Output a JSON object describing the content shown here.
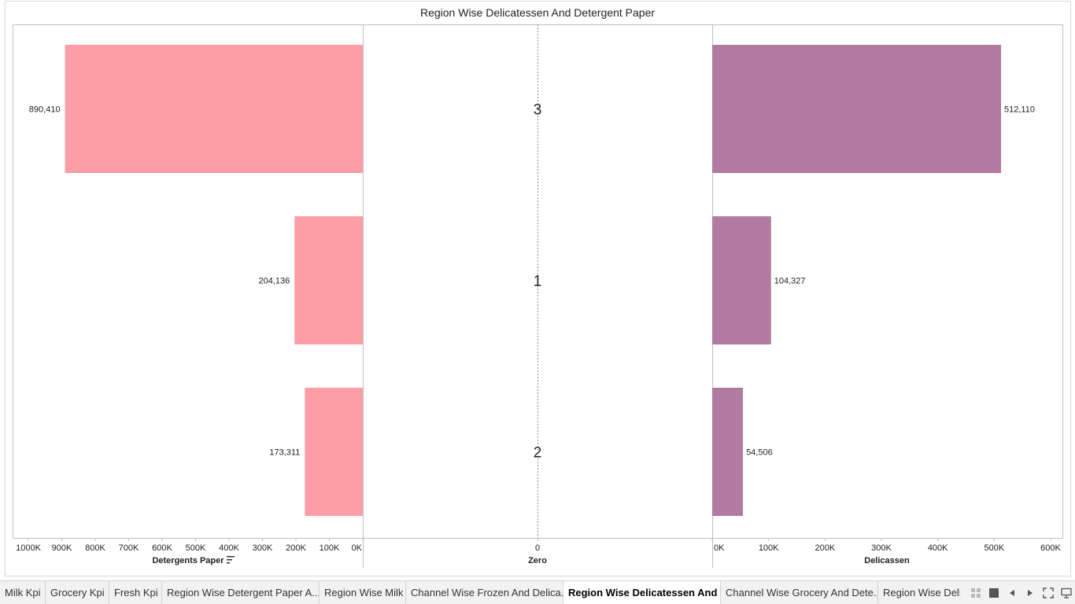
{
  "title": "Region Wise Delicatessen And Detergent Paper",
  "colors": {
    "detergents": "#ff9da7",
    "delicassen": "#b07aa1",
    "axis": "#c0c0c0",
    "text": "#222222"
  },
  "chart_data": {
    "type": "bar",
    "title": "Region Wise Delicatessen And Detergent Paper",
    "categories": [
      "3",
      "1",
      "2"
    ],
    "series": [
      {
        "name": "Detergents Paper",
        "values": [
          890410,
          204136,
          173311
        ],
        "labels": [
          "890,410",
          "204,136",
          "173,311"
        ],
        "direction": "left"
      },
      {
        "name": "Delicassen",
        "values": [
          512110,
          104327,
          54506
        ],
        "labels": [
          "512,110",
          "104,327",
          "54,506"
        ],
        "direction": "right"
      }
    ],
    "left_axis": {
      "label": "Detergents Paper",
      "range": [
        0,
        1000000
      ],
      "ticks": [
        "1000K",
        "900K",
        "800K",
        "700K",
        "600K",
        "500K",
        "400K",
        "300K",
        "200K",
        "100K",
        "0K"
      ],
      "reversed": true,
      "sorted": true
    },
    "middle_axis": {
      "label": "Zero",
      "ticks": [
        "0"
      ]
    },
    "right_axis": {
      "label": "Delicassen",
      "range": [
        0,
        600000
      ],
      "ticks": [
        "0K",
        "100K",
        "200K",
        "300K",
        "400K",
        "500K",
        "600K"
      ]
    },
    "grid": false
  },
  "tabs": [
    {
      "label": "Milk Kpi",
      "active": false
    },
    {
      "label": "Grocery Kpi",
      "active": false
    },
    {
      "label": "Fresh Kpi",
      "active": false
    },
    {
      "label": "Region Wise Detergent Paper A...",
      "active": false
    },
    {
      "label": "Region Wise Milk",
      "active": false
    },
    {
      "label": "Channel Wise Frozen And Delica...",
      "active": false
    },
    {
      "label": "Region Wise Delicatessen And ...",
      "active": true
    },
    {
      "label": "Channel Wise Grocery And Dete...",
      "active": false
    },
    {
      "label": "Region Wise Delic",
      "active": false
    }
  ],
  "tab_controls": [
    "grid-view-icon",
    "single-view-icon",
    "previous-tab-icon",
    "next-tab-icon",
    "fullscreen-icon",
    "present-icon"
  ]
}
